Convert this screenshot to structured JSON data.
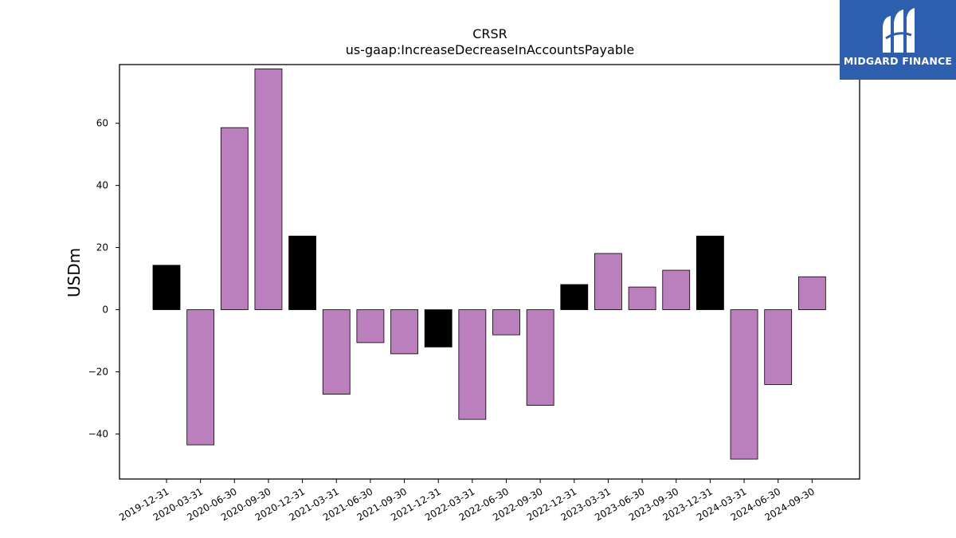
{
  "chart_data": {
    "type": "bar",
    "title": "CRSR",
    "subtitle": "us-gaap:IncreaseDecreaseInAccountsPayable",
    "ylabel": "USDm",
    "xlabel": "",
    "ylim": [
      -54.5,
      78.9
    ],
    "yticks": [
      -40,
      -20,
      0,
      20,
      40,
      60
    ],
    "ytick_labels": [
      "−40",
      "−20",
      "0",
      "20",
      "40",
      "60"
    ],
    "grid": false,
    "colors": {
      "q4": "#000000",
      "other": "#bc7fbd",
      "edge": "#000000"
    },
    "categories": [
      "2019-12-31",
      "2020-03-31",
      "2020-06-30",
      "2020-09-30",
      "2020-12-31",
      "2021-03-31",
      "2021-06-30",
      "2021-09-30",
      "2021-12-31",
      "2022-03-31",
      "2022-06-30",
      "2022-09-30",
      "2022-12-31",
      "2023-03-31",
      "2023-06-30",
      "2023-09-30",
      "2023-12-31",
      "2024-03-31",
      "2024-06-30",
      "2024-09-30"
    ],
    "values": [
      14.3,
      -43.5,
      58.6,
      77.5,
      23.7,
      -27.2,
      -10.6,
      -14.2,
      -12.0,
      -35.3,
      -8.1,
      -30.8,
      8.1,
      18.1,
      7.3,
      12.7,
      23.7,
      -48.1,
      -24.1,
      10.6
    ],
    "highlight": [
      true,
      false,
      false,
      false,
      true,
      false,
      false,
      false,
      true,
      false,
      false,
      false,
      true,
      false,
      false,
      false,
      true,
      false,
      false,
      false
    ]
  },
  "logo": {
    "text": "MIDGARD FINANCE",
    "background": "#2d5fae"
  }
}
